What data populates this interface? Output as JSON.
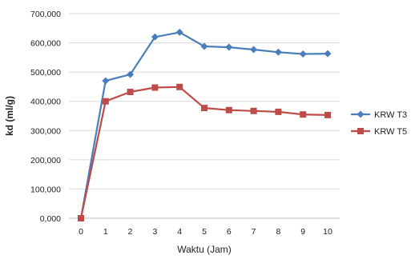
{
  "chart_data": {
    "type": "line",
    "xlabel": "Waktu (Jam)",
    "ylabel": "kd (ml/g)",
    "x": [
      0,
      1,
      2,
      3,
      4,
      5,
      6,
      7,
      8,
      9,
      10
    ],
    "xlim": [
      0,
      10
    ],
    "ylim": [
      0,
      700000
    ],
    "yticks": [
      "0,000",
      "100,000",
      "200,000",
      "300,000",
      "400,000",
      "500,000",
      "600,000",
      "700,000"
    ],
    "grid": true,
    "legend_position": "right",
    "series": [
      {
        "name": "KRW T3",
        "color": "#4a7ebb",
        "marker": "diamond",
        "values": [
          0,
          470000,
          492000,
          620000,
          636000,
          588000,
          585000,
          577000,
          568000,
          562000,
          563000
        ]
      },
      {
        "name": "KRW T5",
        "color": "#be4b48",
        "marker": "square",
        "values": [
          0,
          400000,
          432000,
          447000,
          449000,
          377000,
          370000,
          367000,
          364000,
          355000,
          353000
        ]
      }
    ]
  }
}
